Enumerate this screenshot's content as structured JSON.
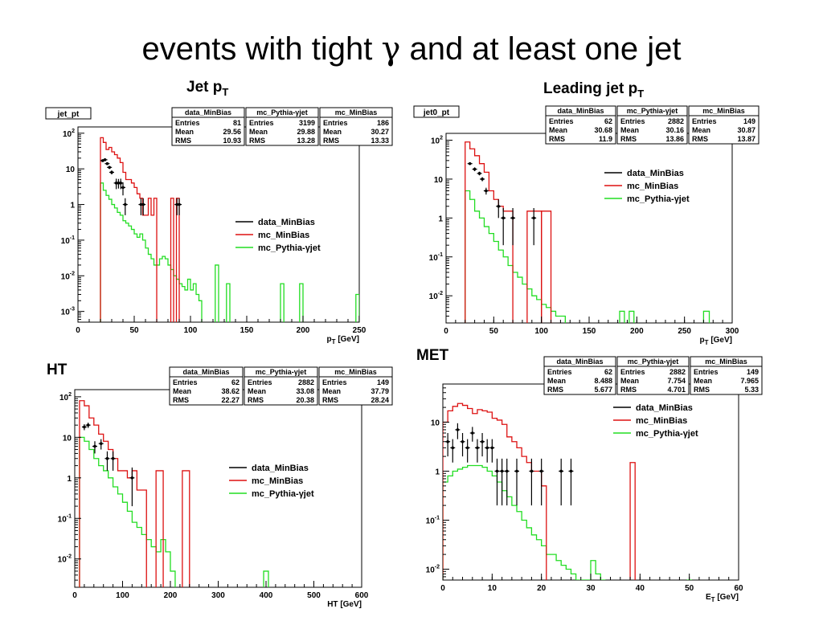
{
  "slide": {
    "title_prefix": "events with tight ",
    "title_symbol": "γ",
    "title_suffix": " and at least one jet"
  },
  "chart_data": [
    {
      "type": "histogram",
      "heading": "Jet p",
      "heading_sub": "T",
      "hist_name": "jet_pt",
      "xlabel": "p",
      "xlabel_sub": "T",
      "xlabel_unit": " [GeV]",
      "log_y": true,
      "xlim": [
        0,
        250
      ],
      "ylim": [
        0.0005,
        150
      ],
      "x_ticks": [
        0,
        50,
        100,
        150,
        200,
        250
      ],
      "y_ticks": [
        {
          "v": 0.001,
          "m": "10",
          "e": "-3"
        },
        {
          "v": 0.01,
          "m": "10",
          "e": "-2"
        },
        {
          "v": 0.1,
          "m": "10",
          "e": "-1"
        },
        {
          "v": 1,
          "m": "1",
          "e": ""
        },
        {
          "v": 10,
          "m": "10",
          "e": ""
        },
        {
          "v": 100,
          "m": "10",
          "e": "2"
        }
      ],
      "stats": [
        {
          "title": "data_MinBias",
          "entries": "81",
          "mean": "29.56",
          "rms": "10.93"
        },
        {
          "title": "mc_Pythia-γjet",
          "entries": "3199",
          "mean": "29.88",
          "rms": "13.28"
        },
        {
          "title": "mc_MinBias",
          "entries": "186",
          "mean": "30.27",
          "rms": "13.33"
        }
      ],
      "legend": [
        "data_MinBias",
        "mc_MinBias",
        "mc_Pythia-γjet"
      ],
      "colors": {
        "data": "#000000",
        "mc_minbias": "#dd1111",
        "pythia": "#22dd22"
      },
      "red_hist": {
        "edges": [
          20,
          22.5,
          25,
          27.5,
          30,
          32.5,
          35,
          37.5,
          40,
          42.5,
          45,
          47.5,
          50,
          52.5,
          55,
          57.5,
          60,
          62.5,
          65,
          67.5,
          70
        ],
        "values": [
          75,
          55,
          35,
          40,
          30,
          25,
          20,
          15,
          8,
          5,
          5,
          4,
          3,
          2,
          1.5,
          0.5,
          0.5,
          1.5,
          0.5,
          1.5,
          0
        ]
      },
      "red_spikes": [
        [
          82.5,
          85,
          1.5
        ],
        [
          87.5,
          90,
          1.5
        ]
      ],
      "green_hist": {
        "edges": [
          20,
          22.5,
          25,
          27.5,
          30,
          32.5,
          35,
          37.5,
          40,
          42.5,
          45,
          47.5,
          50,
          52.5,
          55,
          57.5,
          60,
          62.5,
          65,
          67.5,
          70,
          72.5,
          75,
          77.5,
          80,
          82.5,
          85,
          87.5,
          90,
          92.5,
          95,
          97.5,
          100,
          102.5,
          105,
          107.5,
          110
        ],
        "values": [
          4,
          2.5,
          1.8,
          1.4,
          1,
          0.8,
          0.6,
          0.5,
          0.35,
          0.3,
          0.25,
          0.2,
          0.15,
          0.12,
          0.15,
          0.1,
          0.06,
          0.04,
          0.03,
          0.02,
          0.02,
          0.03,
          0.035,
          0.03,
          0.02,
          0.015,
          0.01,
          0.008,
          0.006,
          0.005,
          0.004,
          0.008,
          0.004,
          0.006,
          0.003,
          0.002,
          0
        ]
      },
      "green_spikes": [
        [
          122,
          125,
          0.02
        ],
        [
          132,
          135,
          0.006
        ],
        [
          180,
          183,
          0.006
        ],
        [
          197,
          200,
          0.006
        ],
        [
          247,
          250,
          0.003
        ]
      ],
      "data_points": [
        [
          22,
          17,
          1.3
        ],
        [
          24,
          18,
          1.3
        ],
        [
          26,
          14,
          1.1
        ],
        [
          28,
          11,
          1.1
        ],
        [
          30,
          8,
          1.0
        ],
        [
          34,
          4,
          1.3
        ],
        [
          36,
          4,
          1.2
        ],
        [
          38,
          4,
          1.3
        ],
        [
          40,
          3,
          1.2
        ],
        [
          42,
          1,
          0.5
        ],
        [
          56,
          1,
          0.5
        ],
        [
          58,
          1,
          0.5
        ],
        [
          88,
          1,
          0.5
        ],
        [
          90,
          1,
          0.5
        ]
      ]
    },
    {
      "type": "histogram",
      "heading": "Leading jet p",
      "heading_sub": "T",
      "hist_name": "jet0_pt",
      "xlabel": "p",
      "xlabel_sub": "T",
      "xlabel_unit": " [GeV]",
      "log_y": true,
      "xlim": [
        0,
        300
      ],
      "ylim": [
        0.002,
        150
      ],
      "x_ticks": [
        0,
        50,
        100,
        150,
        200,
        250,
        300
      ],
      "y_ticks": [
        {
          "v": 0.01,
          "m": "10",
          "e": "-2"
        },
        {
          "v": 0.1,
          "m": "10",
          "e": "-1"
        },
        {
          "v": 1,
          "m": "1",
          "e": ""
        },
        {
          "v": 10,
          "m": "10",
          "e": ""
        },
        {
          "v": 100,
          "m": "10",
          "e": "2"
        }
      ],
      "stats": [
        {
          "title": "data_MinBias",
          "entries": "62",
          "mean": "30.68",
          "rms": "11.9"
        },
        {
          "title": "mc_Pythia-γjet",
          "entries": "2882",
          "mean": "30.16",
          "rms": "13.86"
        },
        {
          "title": "mc_MinBias",
          "entries": "149",
          "mean": "30.87",
          "rms": "13.87"
        }
      ],
      "legend": [
        "data_MinBias",
        "mc_MinBias",
        "mc_Pythia-γjet"
      ],
      "colors": {
        "data": "#000000",
        "mc_minbias": "#dd1111",
        "pythia": "#22dd22"
      },
      "red_hist": {
        "edges": [
          20,
          25,
          30,
          35,
          40,
          45,
          50,
          55,
          60,
          65,
          70
        ],
        "values": [
          90,
          60,
          40,
          25,
          15,
          5,
          3,
          2,
          1.5,
          1.5,
          0
        ]
      },
      "red_spikes": [
        [
          85,
          100,
          1.5
        ],
        [
          100,
          110,
          1.5
        ]
      ],
      "green_hist": {
        "edges": [
          20,
          25,
          30,
          35,
          40,
          45,
          50,
          55,
          60,
          65,
          70,
          75,
          80,
          85,
          90,
          95,
          100,
          105,
          110,
          115,
          120,
          125
        ],
        "values": [
          5,
          3,
          1.5,
          1,
          0.6,
          0.4,
          0.25,
          0.15,
          0.1,
          0.06,
          0.04,
          0.03,
          0.02,
          0.015,
          0.01,
          0.008,
          0.006,
          0.005,
          0.004,
          0.003,
          0.003,
          0
        ]
      },
      "green_spikes": [
        [
          182,
          187,
          0.004
        ],
        [
          192,
          197,
          0.004
        ],
        [
          270,
          276,
          0.004
        ]
      ],
      "data_points": [
        [
          25,
          25,
          2
        ],
        [
          30,
          18,
          2
        ],
        [
          35,
          14,
          1.5
        ],
        [
          38,
          10,
          1.2
        ],
        [
          42,
          5,
          1
        ],
        [
          55,
          2,
          1
        ],
        [
          60,
          1,
          0.8
        ],
        [
          70,
          1,
          0.8
        ],
        [
          92,
          1,
          0.8
        ]
      ]
    },
    {
      "type": "histogram",
      "heading": "HT",
      "heading_sub": "",
      "hist_name": "",
      "xlabel": "HT",
      "xlabel_sub": "",
      "xlabel_unit": " [GeV]",
      "log_y": true,
      "xlim": [
        0,
        600
      ],
      "ylim": [
        0.002,
        150
      ],
      "x_ticks": [
        0,
        100,
        200,
        300,
        400,
        500,
        600
      ],
      "y_ticks": [
        {
          "v": 0.01,
          "m": "10",
          "e": "-2"
        },
        {
          "v": 0.1,
          "m": "10",
          "e": "-1"
        },
        {
          "v": 1,
          "m": "1",
          "e": ""
        },
        {
          "v": 10,
          "m": "10",
          "e": ""
        },
        {
          "v": 100,
          "m": "10",
          "e": "2"
        }
      ],
      "stats": [
        {
          "title": "data_MinBias",
          "entries": "62",
          "mean": "38.62",
          "rms": "22.27"
        },
        {
          "title": "mc_Pythia-γjet",
          "entries": "2882",
          "mean": "33.08",
          "rms": "20.38"
        },
        {
          "title": "mc_MinBias",
          "entries": "149",
          "mean": "37.79",
          "rms": "28.24"
        }
      ],
      "legend": [
        "data_MinBias",
        "mc_MinBias",
        "mc_Pythia-γjet"
      ],
      "colors": {
        "data": "#000000",
        "mc_minbias": "#dd1111",
        "pythia": "#22dd22"
      },
      "red_hist": {
        "edges": [
          10,
          20,
          30,
          40,
          50,
          60,
          70,
          80,
          90,
          100,
          110,
          120,
          130,
          140,
          150
        ],
        "values": [
          80,
          60,
          30,
          20,
          12,
          8,
          5,
          3,
          1.5,
          1.5,
          1,
          1.5,
          0.5,
          0.5,
          0
        ]
      },
      "red_spikes": [
        [
          170,
          185,
          1.5
        ],
        [
          225,
          240,
          1.5
        ]
      ],
      "green_hist": {
        "edges": [
          10,
          20,
          30,
          40,
          50,
          60,
          70,
          80,
          90,
          100,
          110,
          120,
          130,
          140,
          150,
          160,
          170,
          180,
          190,
          200,
          210
        ],
        "values": [
          10,
          8,
          5,
          3,
          2,
          1.5,
          1,
          0.6,
          0.4,
          0.25,
          0.15,
          0.08,
          0.06,
          0.04,
          0.03,
          0.02,
          0.015,
          0.03,
          0.015,
          0.005,
          0
        ]
      },
      "green_spikes": [
        [
          395,
          405,
          0.005
        ]
      ],
      "data_points": [
        [
          20,
          18,
          3
        ],
        [
          28,
          20,
          3
        ],
        [
          42,
          6,
          2
        ],
        [
          55,
          7,
          2
        ],
        [
          68,
          3,
          1.5
        ],
        [
          80,
          3,
          1.5
        ],
        [
          120,
          1,
          0.8
        ]
      ]
    },
    {
      "type": "histogram",
      "heading": "MET",
      "heading_sub": "",
      "hist_name": "",
      "xlabel": "E",
      "xlabel_sub": "T",
      "xlabel_unit": " [GeV]",
      "log_y": true,
      "xlim": [
        0,
        60
      ],
      "ylim": [
        0.006,
        60
      ],
      "x_ticks": [
        0,
        10,
        20,
        30,
        40,
        50,
        60
      ],
      "y_ticks": [
        {
          "v": 0.01,
          "m": "10",
          "e": "-2"
        },
        {
          "v": 0.1,
          "m": "10",
          "e": "-1"
        },
        {
          "v": 1,
          "m": "1",
          "e": ""
        },
        {
          "v": 10,
          "m": "10",
          "e": ""
        }
      ],
      "stats": [
        {
          "title": "data_MinBias",
          "entries": "62",
          "mean": "8.488",
          "rms": "5.677"
        },
        {
          "title": "mc_Pythia-γjet",
          "entries": "2882",
          "mean": "7.754",
          "rms": "4.701"
        },
        {
          "title": "mc_MinBias",
          "entries": "149",
          "mean": "7.965",
          "rms": "5.33"
        }
      ],
      "legend": [
        "data_MinBias",
        "mc_MinBias",
        "mc_Pythia-γjet"
      ],
      "colors": {
        "data": "#000000",
        "mc_minbias": "#dd1111",
        "pythia": "#22dd22"
      },
      "red_hist": {
        "edges": [
          0,
          1,
          2,
          3,
          4,
          5,
          6,
          7,
          8,
          9,
          10,
          11,
          12,
          13,
          14,
          15,
          16,
          17,
          18,
          19,
          20,
          21
        ],
        "values": [
          10,
          17,
          21,
          24,
          22,
          19,
          15,
          18,
          17,
          16,
          12,
          11,
          9,
          5,
          4,
          3,
          2,
          1.5,
          1,
          1,
          0.5,
          0
        ]
      },
      "red_spikes": [
        [
          38,
          39,
          1.5
        ]
      ],
      "green_hist": {
        "edges": [
          0,
          1,
          2,
          3,
          4,
          5,
          6,
          7,
          8,
          9,
          10,
          11,
          12,
          13,
          14,
          15,
          16,
          17,
          18,
          19,
          20,
          21,
          22,
          23,
          24,
          25,
          26,
          27,
          28,
          29,
          30,
          31,
          32,
          33
        ],
        "values": [
          0.6,
          0.8,
          1,
          1.1,
          1.2,
          1.3,
          1.3,
          1.3,
          1.2,
          1,
          0.8,
          0.6,
          0.4,
          0.3,
          0.2,
          0.15,
          0.1,
          0.07,
          0.05,
          0.04,
          0.03,
          0.02,
          0.02,
          0.015,
          0.012,
          0.01,
          0.008,
          0.006,
          0.004,
          0.006,
          0.015,
          0.008,
          0.004,
          0
        ]
      },
      "green_spikes": [
        [
          49.5,
          50.5,
          0.006
        ]
      ],
      "data_points": [
        [
          1,
          4,
          2
        ],
        [
          2,
          3,
          1.5
        ],
        [
          3,
          7,
          2.5
        ],
        [
          4,
          4,
          2
        ],
        [
          5,
          3,
          1.5
        ],
        [
          6,
          6,
          2
        ],
        [
          7,
          3,
          1.5
        ],
        [
          8,
          4,
          2
        ],
        [
          9,
          3,
          1.5
        ],
        [
          10,
          3,
          1.5
        ],
        [
          11,
          1,
          0.8
        ],
        [
          12,
          1,
          0.8
        ],
        [
          13,
          1,
          0.8
        ],
        [
          15,
          1,
          0.8
        ],
        [
          18,
          1,
          0.8
        ],
        [
          20,
          1,
          0.8
        ],
        [
          24,
          1,
          0.8
        ],
        [
          26,
          1,
          0.8
        ]
      ]
    }
  ]
}
